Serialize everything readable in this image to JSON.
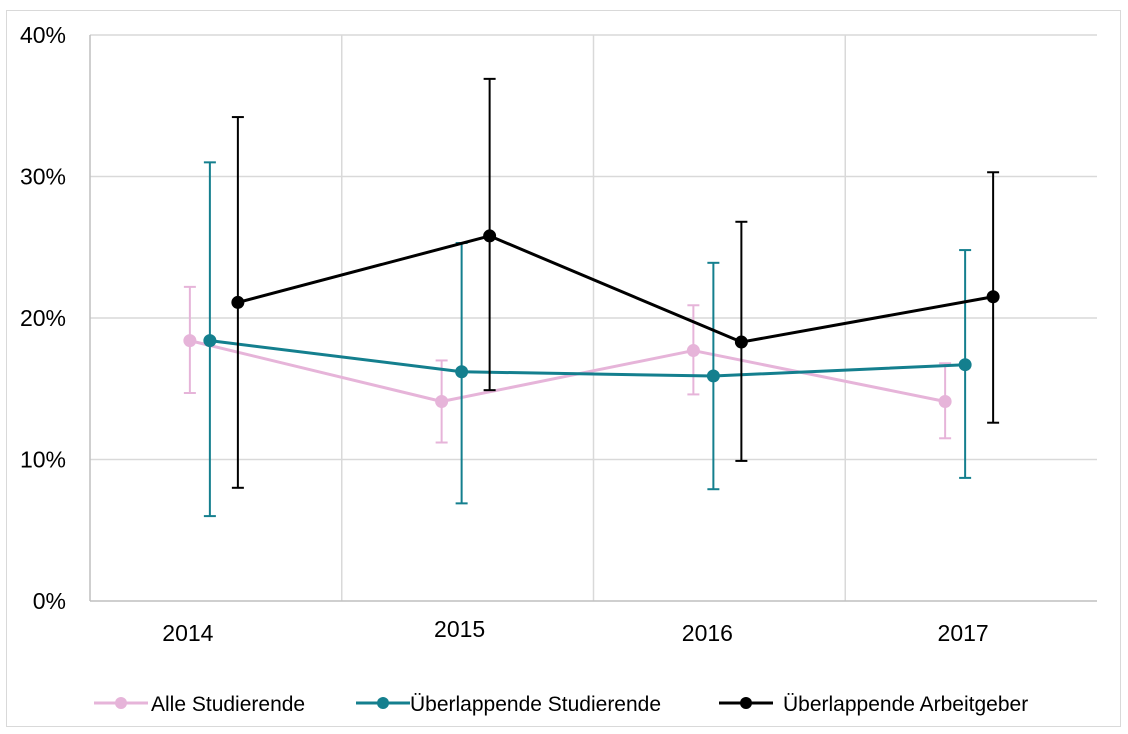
{
  "chart_data": {
    "type": "line",
    "title": "",
    "xlabel": "",
    "ylabel": "",
    "categories": [
      "2014",
      "2015",
      "2016",
      "2017"
    ],
    "y_ticks": [
      "0%",
      "10%",
      "20%",
      "30%",
      "40%"
    ],
    "ylim": [
      0,
      40
    ],
    "unit": "%",
    "grid": true,
    "error_bars": true,
    "legend_position": "bottom",
    "series": [
      {
        "name": "Alle Studierende",
        "color": "#e6b4d9",
        "values": [
          18.4,
          14.1,
          17.7,
          14.1
        ],
        "lower": [
          14.7,
          11.2,
          14.6,
          11.5
        ],
        "upper": [
          22.2,
          17.0,
          20.9,
          16.8
        ]
      },
      {
        "name": "Überlappende Studierende",
        "color": "#147f8e",
        "values": [
          18.4,
          16.2,
          15.9,
          16.7
        ],
        "lower": [
          6.0,
          6.9,
          7.9,
          8.7
        ],
        "upper": [
          31.0,
          25.3,
          23.9,
          24.8
        ]
      },
      {
        "name": "Überlappende Arbeitgeber",
        "color": "#000000",
        "values": [
          21.1,
          25.8,
          18.3,
          21.5
        ],
        "lower": [
          8.0,
          14.9,
          9.9,
          12.6
        ],
        "upper": [
          34.2,
          36.9,
          26.8,
          30.3
        ]
      }
    ]
  }
}
